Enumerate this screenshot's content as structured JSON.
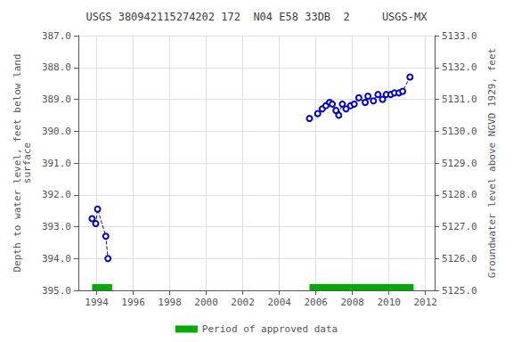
{
  "chart_data": {
    "type": "line",
    "title": "USGS 380942115274202 172  N04 E58 33DB  2     USGS-MX",
    "ylabel": "Depth to water level, feet below land\nsurface",
    "y2label": "Groundwater level above NGVD 1929, feet",
    "xlim": [
      1993.0,
      2012.5
    ],
    "xticks": [
      1994,
      1996,
      1998,
      2000,
      2002,
      2004,
      2006,
      2008,
      2010,
      2012
    ],
    "ylim": [
      395.0,
      387.0
    ],
    "yticks": [
      {
        "value": 387.0,
        "label": "387.0"
      },
      {
        "value": 388.0,
        "label": "388.0"
      },
      {
        "value": 389.0,
        "label": "389.0"
      },
      {
        "value": 390.0,
        "label": "390.0"
      },
      {
        "value": 391.0,
        "label": "391.0"
      },
      {
        "value": 392.0,
        "label": "392.0"
      },
      {
        "value": 393.0,
        "label": "393.0"
      },
      {
        "value": 394.0,
        "label": "394.0"
      },
      {
        "value": 395.0,
        "label": "395.0"
      }
    ],
    "y2lim": [
      5125.0,
      5133.0
    ],
    "y2ticks": [
      {
        "value": 5125.0,
        "label": "5125.0"
      },
      {
        "value": 5126.0,
        "label": "5126.0"
      },
      {
        "value": 5127.0,
        "label": "5127.0"
      },
      {
        "value": 5128.0,
        "label": "5128.0"
      },
      {
        "value": 5129.0,
        "label": "5129.0"
      },
      {
        "value": 5130.0,
        "label": "5130.0"
      },
      {
        "value": 5131.0,
        "label": "5131.0"
      },
      {
        "value": 5132.0,
        "label": "5132.0"
      },
      {
        "value": 5133.0,
        "label": "5133.0"
      }
    ],
    "grid": true,
    "legend": "bottom",
    "series": [
      {
        "type": "line",
        "color": "#0000cc",
        "marker": "open circle",
        "line_style": "dashed",
        "x": [
          1993.75,
          1993.95,
          1994.05,
          1994.5,
          1994.62
        ],
        "values": [
          392.75,
          392.9,
          392.45,
          393.3,
          394.0
        ]
      },
      {
        "type": "line",
        "color": "#0000cc",
        "marker": "open circle",
        "line_style": "dashed",
        "x": [
          2005.65,
          2006.1,
          2006.35,
          2006.55,
          2006.75,
          2006.9,
          2007.1,
          2007.25,
          2007.45,
          2007.65,
          2007.9,
          2008.1,
          2008.35,
          2008.7,
          2008.85,
          2009.15,
          2009.4,
          2009.65,
          2009.85,
          2010.1,
          2010.3,
          2010.55,
          2010.75,
          2011.15
        ],
        "values": [
          389.6,
          389.45,
          389.3,
          389.2,
          389.1,
          389.15,
          389.35,
          389.5,
          389.15,
          389.3,
          389.2,
          389.15,
          388.95,
          389.1,
          388.9,
          389.05,
          388.85,
          389.0,
          388.85,
          388.85,
          388.8,
          388.8,
          388.75,
          388.3
        ]
      },
      {
        "type": "span",
        "name": "Period of approved data",
        "color": "#00aa00",
        "x_start": [
          1993.75,
          2005.65
        ],
        "x_end": [
          1994.85,
          2011.35
        ]
      }
    ]
  }
}
